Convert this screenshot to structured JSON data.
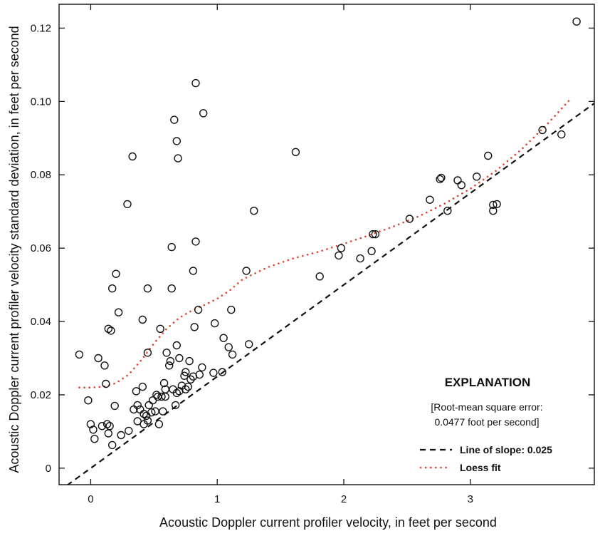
{
  "chart_data": {
    "type": "scatter",
    "title": "",
    "xlabel": "Acoustic Doppler current profiler velocity, in feet per second",
    "ylabel": "Acoustic Doppler current profiler velocity standard deviation, in feet per second",
    "xlim": [
      -0.25,
      3.98
    ],
    "ylim": [
      -0.0045,
      0.1265
    ],
    "xticks": [
      0,
      1,
      2,
      3
    ],
    "xtick_labels": [
      "0",
      "1",
      "2",
      "3"
    ],
    "yticks": [
      0,
      0.02,
      0.04,
      0.06,
      0.08,
      0.1,
      0.12
    ],
    "ytick_labels": [
      "0",
      "0.02",
      "0.04",
      "0.06",
      "0.08",
      "0.10",
      "0.12"
    ],
    "grid": false,
    "legend_position": "bottom-right",
    "points": [
      {
        "x": -0.09,
        "y": 0.031
      },
      {
        "x": -0.02,
        "y": 0.0185
      },
      {
        "x": 0.0,
        "y": 0.012
      },
      {
        "x": 0.02,
        "y": 0.0105
      },
      {
        "x": 0.03,
        "y": 0.008
      },
      {
        "x": 0.06,
        "y": 0.03
      },
      {
        "x": 0.09,
        "y": 0.0115
      },
      {
        "x": 0.11,
        "y": 0.028
      },
      {
        "x": 0.12,
        "y": 0.023
      },
      {
        "x": 0.13,
        "y": 0.012
      },
      {
        "x": 0.14,
        "y": 0.038
      },
      {
        "x": 0.14,
        "y": 0.0095
      },
      {
        "x": 0.15,
        "y": 0.0115
      },
      {
        "x": 0.16,
        "y": 0.0375
      },
      {
        "x": 0.17,
        "y": 0.049
      },
      {
        "x": 0.17,
        "y": 0.0063
      },
      {
        "x": 0.19,
        "y": 0.017
      },
      {
        "x": 0.2,
        "y": 0.053
      },
      {
        "x": 0.22,
        "y": 0.0425
      },
      {
        "x": 0.24,
        "y": 0.009
      },
      {
        "x": 0.29,
        "y": 0.072
      },
      {
        "x": 0.3,
        "y": 0.0102
      },
      {
        "x": 0.33,
        "y": 0.085
      },
      {
        "x": 0.34,
        "y": 0.016
      },
      {
        "x": 0.36,
        "y": 0.021
      },
      {
        "x": 0.37,
        "y": 0.0172
      },
      {
        "x": 0.37,
        "y": 0.0128
      },
      {
        "x": 0.39,
        "y": 0.016
      },
      {
        "x": 0.41,
        "y": 0.0405
      },
      {
        "x": 0.41,
        "y": 0.0222
      },
      {
        "x": 0.42,
        "y": 0.0148
      },
      {
        "x": 0.42,
        "y": 0.012
      },
      {
        "x": 0.44,
        "y": 0.0143
      },
      {
        "x": 0.45,
        "y": 0.049
      },
      {
        "x": 0.45,
        "y": 0.0315
      },
      {
        "x": 0.45,
        "y": 0.013
      },
      {
        "x": 0.46,
        "y": 0.0172
      },
      {
        "x": 0.48,
        "y": 0.0152
      },
      {
        "x": 0.49,
        "y": 0.0185
      },
      {
        "x": 0.51,
        "y": 0.0155
      },
      {
        "x": 0.52,
        "y": 0.02
      },
      {
        "x": 0.53,
        "y": 0.0195
      },
      {
        "x": 0.54,
        "y": 0.012
      },
      {
        "x": 0.55,
        "y": 0.038
      },
      {
        "x": 0.56,
        "y": 0.0195
      },
      {
        "x": 0.57,
        "y": 0.0155
      },
      {
        "x": 0.58,
        "y": 0.0232
      },
      {
        "x": 0.59,
        "y": 0.0195
      },
      {
        "x": 0.59,
        "y": 0.0215
      },
      {
        "x": 0.6,
        "y": 0.0315
      },
      {
        "x": 0.62,
        "y": 0.028
      },
      {
        "x": 0.63,
        "y": 0.0292
      },
      {
        "x": 0.64,
        "y": 0.0603
      },
      {
        "x": 0.64,
        "y": 0.049
      },
      {
        "x": 0.65,
        "y": 0.0215
      },
      {
        "x": 0.66,
        "y": 0.095
      },
      {
        "x": 0.67,
        "y": 0.0172
      },
      {
        "x": 0.68,
        "y": 0.0892
      },
      {
        "x": 0.68,
        "y": 0.0205
      },
      {
        "x": 0.68,
        "y": 0.0335
      },
      {
        "x": 0.69,
        "y": 0.0845
      },
      {
        "x": 0.7,
        "y": 0.021
      },
      {
        "x": 0.7,
        "y": 0.03
      },
      {
        "x": 0.72,
        "y": 0.0225
      },
      {
        "x": 0.74,
        "y": 0.0252
      },
      {
        "x": 0.75,
        "y": 0.0215
      },
      {
        "x": 0.75,
        "y": 0.0262
      },
      {
        "x": 0.77,
        "y": 0.0222
      },
      {
        "x": 0.78,
        "y": 0.0292
      },
      {
        "x": 0.79,
        "y": 0.0242
      },
      {
        "x": 0.81,
        "y": 0.0538
      },
      {
        "x": 0.81,
        "y": 0.025
      },
      {
        "x": 0.82,
        "y": 0.0385
      },
      {
        "x": 0.83,
        "y": 0.105
      },
      {
        "x": 0.83,
        "y": 0.0618
      },
      {
        "x": 0.85,
        "y": 0.0432
      },
      {
        "x": 0.86,
        "y": 0.0255
      },
      {
        "x": 0.88,
        "y": 0.0275
      },
      {
        "x": 0.89,
        "y": 0.0968
      },
      {
        "x": 0.97,
        "y": 0.026
      },
      {
        "x": 0.98,
        "y": 0.0395
      },
      {
        "x": 1.04,
        "y": 0.0262
      },
      {
        "x": 1.05,
        "y": 0.0355
      },
      {
        "x": 1.09,
        "y": 0.033
      },
      {
        "x": 1.11,
        "y": 0.0432
      },
      {
        "x": 1.12,
        "y": 0.031
      },
      {
        "x": 1.23,
        "y": 0.0538
      },
      {
        "x": 1.25,
        "y": 0.0338
      },
      {
        "x": 1.29,
        "y": 0.0702
      },
      {
        "x": 1.62,
        "y": 0.0862
      },
      {
        "x": 1.81,
        "y": 0.0523
      },
      {
        "x": 1.96,
        "y": 0.058
      },
      {
        "x": 1.98,
        "y": 0.06
      },
      {
        "x": 2.13,
        "y": 0.0572
      },
      {
        "x": 2.22,
        "y": 0.0592
      },
      {
        "x": 2.23,
        "y": 0.0638
      },
      {
        "x": 2.25,
        "y": 0.0638
      },
      {
        "x": 2.52,
        "y": 0.068
      },
      {
        "x": 2.68,
        "y": 0.0732
      },
      {
        "x": 2.76,
        "y": 0.0788
      },
      {
        "x": 2.77,
        "y": 0.0792
      },
      {
        "x": 2.82,
        "y": 0.0702
      },
      {
        "x": 2.9,
        "y": 0.0785
      },
      {
        "x": 2.93,
        "y": 0.0772
      },
      {
        "x": 3.05,
        "y": 0.0795
      },
      {
        "x": 3.14,
        "y": 0.0852
      },
      {
        "x": 3.18,
        "y": 0.0702
      },
      {
        "x": 3.18,
        "y": 0.0718
      },
      {
        "x": 3.21,
        "y": 0.072
      },
      {
        "x": 3.57,
        "y": 0.0922
      },
      {
        "x": 3.72,
        "y": 0.091
      },
      {
        "x": 3.84,
        "y": 0.1218
      }
    ],
    "slope_line": {
      "name": "Line of slope: 0.025",
      "slope": 0.025,
      "intercept": 0,
      "x_range": [
        -0.25,
        3.98
      ],
      "color": "#111111",
      "style": "dashed"
    },
    "loess_fit": {
      "name": "Loess fit",
      "color": "#d9462f",
      "style": "dotted",
      "x": [
        -0.09,
        0.0,
        0.1,
        0.2,
        0.3,
        0.4,
        0.5,
        0.6,
        0.7,
        0.8,
        0.9,
        1.0,
        1.1,
        1.2,
        1.4,
        1.6,
        1.8,
        2.0,
        2.2,
        2.4,
        2.6,
        2.8,
        3.0,
        3.2,
        3.4,
        3.6,
        3.8
      ],
      "y": [
        0.022,
        0.022,
        0.0222,
        0.0232,
        0.0255,
        0.0295,
        0.034,
        0.038,
        0.041,
        0.043,
        0.0445,
        0.0462,
        0.0485,
        0.0515,
        0.0548,
        0.0572,
        0.059,
        0.0612,
        0.0635,
        0.066,
        0.0688,
        0.0722,
        0.0762,
        0.081,
        0.0868,
        0.0935,
        0.101
      ]
    },
    "legend": {
      "title": "EXPLANATION",
      "note_line1": "[Root-mean square error:",
      "note_line2": "0.0477 foot per second]",
      "items": [
        {
          "label": "Line of slope: 0.025",
          "style": "dashed",
          "color": "#111111"
        },
        {
          "label": "Loess fit",
          "style": "dotted",
          "color": "#d9462f"
        }
      ]
    },
    "marker": {
      "shape": "open-circle",
      "color": "#111111"
    }
  }
}
